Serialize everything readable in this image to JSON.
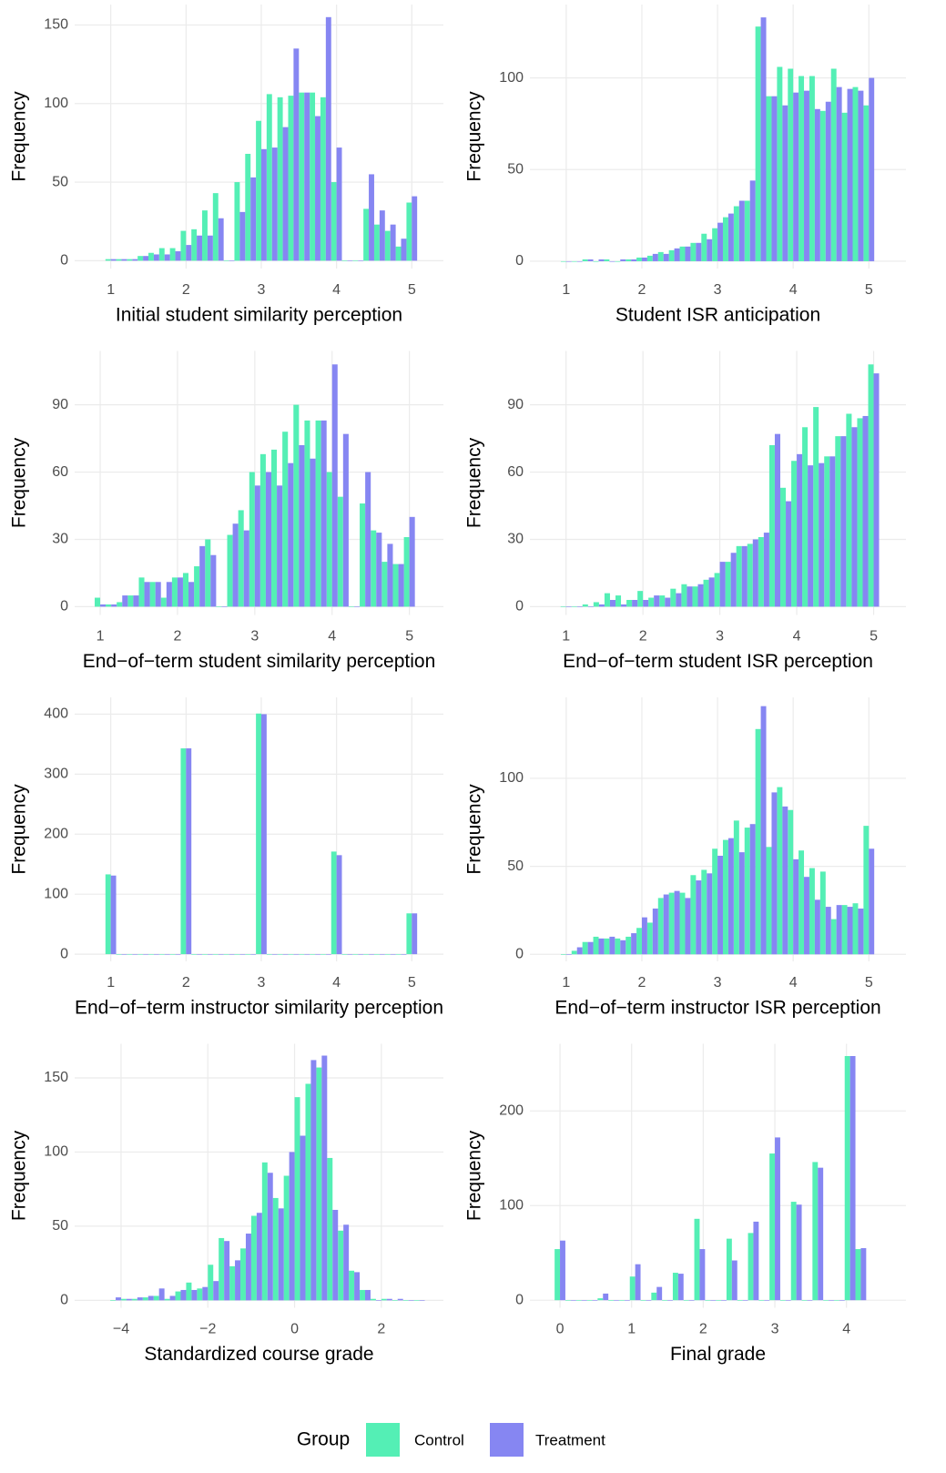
{
  "legend_title": "Group",
  "chart_data": [
    {
      "type": "histogram",
      "xlabel": "Initial student similarity perception",
      "ylabel": "Frequency",
      "bins": [
        0.929,
        1.071,
        1.214,
        1.357,
        1.5,
        1.643,
        1.786,
        1.929,
        2.071,
        2.214,
        2.357,
        2.5,
        2.643,
        2.786,
        2.929,
        3.071,
        3.214,
        3.357,
        3.5,
        3.643,
        3.786,
        3.929,
        4.071,
        4.214,
        4.357,
        4.5,
        4.643,
        4.786,
        4.929,
        5.071
      ],
      "series": [
        {
          "name": "Control",
          "color": "#54efb5",
          "values": [
            1,
            1,
            1,
            3,
            5,
            8,
            8,
            19,
            20,
            32,
            43,
            0,
            50,
            68,
            89,
            106,
            104,
            105,
            107,
            107,
            104,
            50,
            0,
            0,
            33,
            23,
            19,
            9,
            37
          ]
        },
        {
          "name": "Treatment",
          "color": "#8686f2",
          "values": [
            1,
            1,
            1,
            3,
            4,
            4,
            6,
            10,
            16,
            16,
            27,
            0,
            31,
            53,
            71,
            72,
            85,
            135,
            107,
            92,
            155,
            72,
            0,
            0,
            55,
            32,
            23,
            14,
            41
          ]
        }
      ],
      "xlim": [
        0.52,
        5.42
      ],
      "ylim": [
        -5,
        163
      ],
      "xticks": [
        1,
        2,
        3,
        4,
        5
      ],
      "yticks": [
        0,
        50,
        100,
        150
      ],
      "grid": true
    },
    {
      "type": "histogram",
      "xlabel": "Student ISR anticipation",
      "ylabel": "Frequency",
      "bins": [
        0.929,
        1.071,
        1.214,
        1.357,
        1.5,
        1.643,
        1.786,
        1.929,
        2.071,
        2.214,
        2.357,
        2.5,
        2.643,
        2.786,
        2.929,
        3.071,
        3.214,
        3.357,
        3.5,
        3.643,
        3.786,
        3.929,
        4.071,
        4.214,
        4.357,
        4.5,
        4.643,
        4.786,
        4.929,
        5.071
      ],
      "series": [
        {
          "name": "Control",
          "color": "#54efb5",
          "values": [
            0,
            0,
            1,
            0,
            1,
            0,
            1,
            2,
            3,
            5,
            6,
            8,
            10,
            15,
            18,
            24,
            30,
            33,
            128,
            90,
            106,
            105,
            101,
            101,
            82,
            105,
            81,
            95,
            85
          ]
        },
        {
          "name": "Treatment",
          "color": "#8686f2",
          "values": [
            0,
            0,
            1,
            1,
            0,
            1,
            1,
            2,
            4,
            4,
            7,
            8,
            10,
            12,
            21,
            26,
            33,
            44,
            133,
            90,
            85,
            92,
            93,
            83,
            87,
            95,
            94,
            93,
            100
          ]
        }
      ],
      "xlim": [
        0.52,
        5.49
      ],
      "ylim": [
        -4,
        140
      ],
      "xticks": [
        1,
        2,
        3,
        4,
        5
      ],
      "yticks": [
        0,
        50,
        100
      ],
      "grid": true
    },
    {
      "type": "histogram",
      "xlabel": "End−of−term student similarity perception",
      "ylabel": "Frequency",
      "bins": [
        0.929,
        1.071,
        1.214,
        1.357,
        1.5,
        1.643,
        1.786,
        1.929,
        2.071,
        2.214,
        2.357,
        2.5,
        2.643,
        2.786,
        2.929,
        3.071,
        3.214,
        3.357,
        3.5,
        3.643,
        3.786,
        3.929,
        4.071,
        4.214,
        4.357,
        4.5,
        4.643,
        4.786,
        4.929,
        5.071
      ],
      "series": [
        {
          "name": "Control",
          "color": "#54efb5",
          "values": [
            4,
            1,
            2,
            5,
            13,
            11,
            4,
            13,
            15,
            18,
            30,
            0,
            32,
            43,
            60,
            68,
            70,
            78,
            90,
            83,
            83,
            60,
            49,
            0,
            46,
            34,
            20,
            19,
            31
          ]
        },
        {
          "name": "Treatment",
          "color": "#8686f2",
          "values": [
            1,
            1,
            5,
            5,
            11,
            11,
            11,
            13,
            11,
            27,
            23,
            0,
            37,
            34,
            54,
            60,
            54,
            64,
            72,
            66,
            83,
            108,
            77,
            0,
            60,
            33,
            28,
            19,
            40
          ]
        }
      ],
      "xlim": [
        0.67,
        5.44
      ],
      "ylim": [
        -3.7,
        114
      ],
      "xticks": [
        1,
        2,
        3,
        4,
        5
      ],
      "yticks": [
        0,
        30,
        60,
        90
      ],
      "grid": true
    },
    {
      "type": "histogram",
      "xlabel": "End−of−term student ISR perception",
      "ylabel": "Frequency",
      "bins": [
        0.929,
        1.071,
        1.214,
        1.357,
        1.5,
        1.643,
        1.786,
        1.929,
        2.071,
        2.214,
        2.357,
        2.5,
        2.643,
        2.786,
        2.929,
        3.071,
        3.214,
        3.357,
        3.5,
        3.643,
        3.786,
        3.929,
        4.071,
        4.214,
        4.357,
        4.5,
        4.643,
        4.786,
        4.929,
        5.071
      ],
      "series": [
        {
          "name": "Control",
          "color": "#54efb5",
          "values": [
            0,
            0,
            1,
            2,
            6,
            5,
            3,
            7,
            4,
            5,
            8,
            10,
            9,
            12,
            15,
            20,
            27,
            28,
            31,
            72,
            53,
            65,
            80,
            89,
            67,
            76,
            86,
            84,
            108
          ]
        },
        {
          "name": "Treatment",
          "color": "#8686f2",
          "values": [
            0,
            0,
            0,
            1,
            3,
            1,
            3,
            3,
            5,
            4,
            6,
            9,
            10,
            13,
            20,
            24,
            27,
            30,
            33,
            77,
            47,
            68,
            63,
            64,
            67,
            76,
            80,
            85,
            104
          ]
        }
      ],
      "xlim": [
        0.53,
        5.42
      ],
      "ylim": [
        -3.7,
        114
      ],
      "xticks": [
        1,
        2,
        3,
        4,
        5
      ],
      "yticks": [
        0,
        30,
        60,
        90
      ],
      "grid": true
    },
    {
      "type": "histogram",
      "xlabel": "End−of−term instructor similarity perception",
      "ylabel": "Frequency",
      "bins": [
        0.929,
        1.071,
        1.214,
        1.357,
        1.5,
        1.643,
        1.786,
        1.929,
        2.071,
        2.214,
        2.357,
        2.5,
        2.643,
        2.786,
        2.929,
        3.071,
        3.214,
        3.357,
        3.5,
        3.643,
        3.786,
        3.929,
        4.071,
        4.214,
        4.357,
        4.5,
        4.643,
        4.786,
        4.929,
        5.071
      ],
      "series": [
        {
          "name": "Control",
          "color": "#54efb5",
          "values": [
            133,
            0,
            0,
            0,
            0,
            0,
            0,
            343,
            0,
            0,
            0,
            0,
            0,
            0,
            401,
            0,
            0,
            0,
            0,
            0,
            0,
            171,
            0,
            0,
            0,
            0,
            0,
            0,
            68
          ]
        },
        {
          "name": "Treatment",
          "color": "#8686f2",
          "values": [
            131,
            0,
            0,
            0,
            0,
            0,
            0,
            343,
            0,
            0,
            0,
            0,
            0,
            0,
            400,
            0,
            0,
            0,
            0,
            0,
            0,
            165,
            0,
            0,
            0,
            0,
            0,
            0,
            68
          ]
        }
      ],
      "xlim": [
        0.52,
        5.42
      ],
      "ylim": [
        -12,
        428
      ],
      "xticks": [
        1,
        2,
        3,
        4,
        5
      ],
      "yticks": [
        0,
        100,
        200,
        300,
        400
      ],
      "grid": true
    },
    {
      "type": "histogram",
      "xlabel": "End−of−term instructor ISR perception",
      "ylabel": "Frequency",
      "bins": [
        0.929,
        1.071,
        1.214,
        1.357,
        1.5,
        1.643,
        1.786,
        1.929,
        2.071,
        2.214,
        2.357,
        2.5,
        2.643,
        2.786,
        2.929,
        3.071,
        3.214,
        3.357,
        3.5,
        3.643,
        3.786,
        3.929,
        4.071,
        4.214,
        4.357,
        4.5,
        4.643,
        4.786,
        4.929,
        5.071
      ],
      "series": [
        {
          "name": "Control",
          "color": "#54efb5",
          "values": [
            0,
            2,
            7,
            10,
            9,
            9,
            10,
            15,
            18,
            32,
            35,
            35,
            45,
            48,
            60,
            65,
            76,
            72,
            128,
            61,
            95,
            82,
            59,
            49,
            47,
            20,
            28,
            29,
            73
          ]
        },
        {
          "name": "Treatment",
          "color": "#8686f2",
          "values": [
            0,
            4,
            7,
            9,
            10,
            8,
            12,
            21,
            26,
            34,
            36,
            32,
            42,
            46,
            56,
            66,
            58,
            74,
            141,
            92,
            84,
            54,
            44,
            31,
            27,
            28,
            27,
            26,
            60
          ]
        }
      ],
      "xlim": [
        0.52,
        5.49
      ],
      "ylim": [
        -4,
        146
      ],
      "xticks": [
        1,
        2,
        3,
        4,
        5
      ],
      "yticks": [
        0,
        50,
        100
      ],
      "grid": true
    },
    {
      "type": "histogram",
      "xlabel": "Standardized course grade",
      "ylabel": "Frequency",
      "bins": [
        -4.25,
        -4,
        -3.75,
        -3.5,
        -3.25,
        -3,
        -2.75,
        -2.5,
        -2.25,
        -2,
        -1.75,
        -1.5,
        -1.25,
        -1,
        -0.75,
        -0.5,
        -0.25,
        0,
        0.25,
        0.5,
        0.75,
        1,
        1.25,
        1.5,
        1.75,
        2,
        2.25,
        2.5,
        2.75,
        3
      ],
      "series": [
        {
          "name": "Control",
          "color": "#54efb5",
          "values": [
            0,
            1,
            1,
            2,
            3,
            1,
            6,
            12,
            8,
            24,
            42,
            23,
            35,
            57,
            93,
            69,
            84,
            137,
            146,
            157,
            96,
            47,
            20,
            7,
            1,
            1,
            0,
            0,
            0
          ]
        },
        {
          "name": "Treatment",
          "color": "#8686f2",
          "values": [
            2,
            1,
            2,
            3,
            8,
            3,
            7,
            7,
            9,
            13,
            40,
            27,
            45,
            59,
            86,
            62,
            100,
            111,
            162,
            165,
            61,
            51,
            19,
            7,
            0,
            1,
            1,
            0,
            0
          ]
        }
      ],
      "xlim": [
        -5.07,
        3.43
      ],
      "ylim": [
        -5,
        173
      ],
      "xticks": [
        {
          "value": -4,
          "label": "−4"
        },
        {
          "value": -2,
          "label": "−2"
        },
        0,
        2
      ],
      "yticks": [
        0,
        50,
        100,
        150
      ],
      "grid": true
    },
    {
      "type": "histogram",
      "xlabel": "Final grade",
      "ylabel": "Frequency",
      "bins": [
        -0.075,
        0.075,
        0.225,
        0.375,
        0.525,
        0.675,
        0.825,
        0.975,
        1.125,
        1.275,
        1.425,
        1.575,
        1.725,
        1.875,
        2.025,
        2.175,
        2.325,
        2.475,
        2.625,
        2.775,
        2.925,
        3.075,
        3.225,
        3.375,
        3.525,
        3.675,
        3.825,
        3.975,
        4.125,
        4.275
      ],
      "series": [
        {
          "name": "Control",
          "color": "#54efb5",
          "values": [
            54,
            0,
            0,
            0,
            2,
            0,
            0,
            25,
            0,
            8,
            0,
            29,
            0,
            86,
            0,
            0,
            65,
            0,
            71,
            0,
            155,
            0,
            104,
            0,
            146,
            0,
            0,
            258,
            54
          ]
        },
        {
          "name": "Treatment",
          "color": "#8686f2",
          "values": [
            63,
            0,
            0,
            0,
            7,
            0,
            0,
            38,
            0,
            14,
            0,
            28,
            0,
            54,
            0,
            0,
            42,
            0,
            83,
            0,
            172,
            0,
            101,
            0,
            140,
            0,
            0,
            258,
            55
          ]
        }
      ],
      "xlim": [
        -0.42,
        4.83
      ],
      "ylim": [
        -8,
        271
      ],
      "xticks": [
        0,
        1,
        2,
        3,
        4
      ],
      "yticks": [
        0,
        100,
        200
      ],
      "grid": true
    }
  ]
}
